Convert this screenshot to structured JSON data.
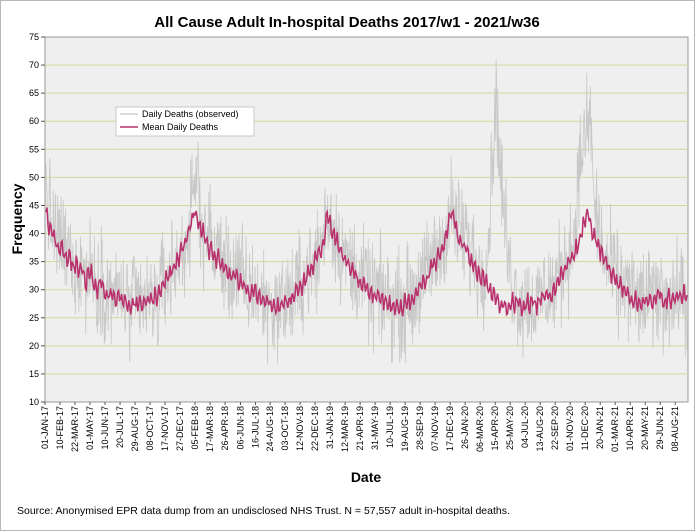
{
  "chart_data": {
    "type": "line",
    "title": "All Cause Adult In-hospital Deaths 2017/w1 - 2021/w36",
    "xlabel": "Date",
    "ylabel": "Frequency",
    "ylim": [
      10,
      75
    ],
    "yticks": [
      10,
      15,
      20,
      25,
      30,
      35,
      40,
      45,
      50,
      55,
      60,
      65,
      70,
      75
    ],
    "x_date_range": [
      "2017-01-01",
      "2021-09-11"
    ],
    "x_tick_labels": [
      "01-JAN-17",
      "10-FEB-17",
      "22-MAR-17",
      "01-MAY-17",
      "10-JUN-17",
      "20-JUL-17",
      "29-AUG-17",
      "08-OCT-17",
      "17-NOV-17",
      "27-DEC-17",
      "05-FEB-18",
      "17-MAR-18",
      "26-APR-18",
      "06-JUN-18",
      "16-JUL-18",
      "24-AUG-18",
      "03-OCT-18",
      "12-NOV-18",
      "22-DEC-18",
      "31-JAN-19",
      "12-MAR-19",
      "21-APR-19",
      "31-MAY-19",
      "10-JUL-19",
      "19-AUG-19",
      "28-SEP-19",
      "07-NOV-19",
      "17-DEC-19",
      "26-JAN-20",
      "06-MAR-20",
      "15-APR-20",
      "25-MAY-20",
      "04-JUL-20",
      "13-AUG-20",
      "22-SEP-20",
      "01-NOV-20",
      "11-DEC-20",
      "20-JAN-21",
      "01-MAR-21",
      "10-APR-21",
      "20-MAY-21",
      "29-JUN-21",
      "08-AUG-21"
    ],
    "grid": true,
    "legend": "upper-left",
    "series": [
      {
        "name": "Daily Deaths (observed)",
        "color": "#c8c8c8",
        "week_values": [
          48,
          44,
          41,
          40,
          38,
          39,
          37,
          36,
          37,
          33,
          36,
          34,
          35,
          32,
          33,
          34,
          31,
          30,
          33,
          31,
          30,
          29,
          30,
          28,
          30,
          29,
          28,
          27,
          26,
          29,
          27,
          28,
          27,
          28,
          27,
          28,
          29,
          27,
          30,
          31,
          32,
          33,
          34,
          35,
          35,
          37,
          38,
          40,
          42,
          47,
          52,
          44,
          40,
          41,
          39,
          38,
          36,
          38,
          35,
          34,
          35,
          32,
          33,
          34,
          31,
          33,
          30,
          29,
          31,
          30,
          30,
          28,
          29,
          27,
          28,
          27,
          26,
          28,
          27,
          28,
          29,
          28,
          29,
          30,
          30,
          32,
          33,
          34,
          33,
          35,
          36,
          38,
          40,
          44,
          43,
          41,
          40,
          38,
          37,
          35,
          36,
          33,
          34,
          33,
          32,
          31,
          32,
          29,
          28,
          31,
          29,
          28,
          29,
          29,
          27,
          28,
          28,
          27,
          28,
          27,
          30,
          28,
          29,
          31,
          32,
          31,
          33,
          35,
          36,
          35,
          37,
          38,
          40,
          42,
          44,
          43,
          41,
          41,
          39,
          40,
          36,
          37,
          35,
          34,
          33,
          35,
          36,
          46,
          58,
          64,
          54,
          46,
          41,
          35,
          32,
          30,
          29,
          28,
          27,
          28,
          27,
          28,
          27,
          28,
          29,
          30,
          29,
          31,
          30,
          32,
          33,
          34,
          36,
          37,
          38,
          42,
          48,
          55,
          56,
          58,
          62,
          48,
          43,
          41,
          37,
          35,
          34,
          33,
          34,
          31,
          30,
          32,
          31,
          29,
          30,
          28,
          29,
          27,
          28,
          29,
          28,
          28,
          29,
          30,
          29,
          28,
          30,
          29,
          28,
          29,
          30,
          30,
          28
        ],
        "notes": "approximate weekly-level envelope of the daily series; daily spread roughly ±7"
      },
      {
        "name": "Mean Daily Deaths",
        "color": "#b8306c",
        "week_values": [
          44,
          41,
          40,
          39,
          37,
          38,
          36,
          35,
          36,
          33,
          35,
          33,
          34,
          31,
          33,
          33,
          30,
          30,
          32,
          30,
          29,
          29,
          29,
          28,
          29,
          28,
          28,
          27,
          27,
          28,
          27,
          28,
          27,
          28,
          28,
          28,
          29,
          29,
          30,
          31,
          32,
          33,
          34,
          35,
          36,
          37,
          38,
          40,
          42,
          44,
          43,
          41,
          40,
          39,
          37,
          37,
          35,
          36,
          34,
          34,
          33,
          32,
          33,
          33,
          31,
          31,
          30,
          29,
          30,
          30,
          29,
          28,
          28,
          28,
          28,
          27,
          27,
          27,
          27,
          28,
          28,
          28,
          29,
          30,
          30,
          31,
          32,
          33,
          34,
          35,
          36,
          37,
          39,
          43,
          42,
          40,
          39,
          37,
          36,
          35,
          35,
          33,
          33,
          32,
          31,
          31,
          31,
          30,
          29,
          29,
          29,
          28,
          28,
          28,
          27,
          27,
          27,
          27,
          27,
          28,
          28,
          28,
          29,
          30,
          31,
          31,
          32,
          33,
          35,
          35,
          36,
          37,
          39,
          41,
          44,
          42,
          40,
          39,
          38,
          37,
          36,
          35,
          34,
          33,
          32,
          32,
          31,
          30,
          29,
          28,
          27,
          28,
          27,
          27,
          28,
          27,
          28,
          27,
          27,
          28,
          27,
          28,
          27,
          28,
          29,
          29,
          29,
          29,
          30,
          31,
          32,
          33,
          34,
          35,
          36,
          37,
          38,
          40,
          42,
          44,
          42,
          40,
          39,
          37,
          36,
          35,
          34,
          33,
          33,
          31,
          31,
          30,
          30,
          29,
          28,
          28,
          27,
          27,
          28,
          28,
          28,
          28,
          29,
          29,
          28,
          28,
          29,
          28,
          28,
          29,
          29,
          29,
          28
        ]
      }
    ]
  },
  "source_note": "Source: Anonymised EPR data dump from an undisclosed NHS Trust. N = 57,557 adult in-hospital deaths."
}
